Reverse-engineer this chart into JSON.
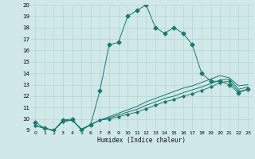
{
  "xlabel": "Humidex (Indice chaleur)",
  "xlim": [
    -0.5,
    23.5
  ],
  "ylim": [
    9,
    20
  ],
  "yticks": [
    9,
    10,
    11,
    12,
    13,
    14,
    15,
    16,
    17,
    18,
    19,
    20
  ],
  "xticks": [
    0,
    1,
    2,
    3,
    4,
    5,
    6,
    7,
    8,
    9,
    10,
    11,
    12,
    13,
    14,
    15,
    16,
    17,
    18,
    19,
    20,
    21,
    22,
    23
  ],
  "background_color": "#d0e8e8",
  "line_color": "#1a7a6e",
  "grid_color": "#b8d4d4",
  "line1_x": [
    0,
    1,
    2,
    3,
    4,
    5,
    6,
    7,
    8,
    9,
    10,
    11,
    12,
    13,
    14,
    15,
    16,
    17,
    18,
    19,
    20,
    21,
    22,
    23
  ],
  "line1_y": [
    9.7,
    9.2,
    9.0,
    9.9,
    10.0,
    9.0,
    9.5,
    12.5,
    16.5,
    16.7,
    19.0,
    19.5,
    20.0,
    18.0,
    17.5,
    18.0,
    17.5,
    16.5,
    14.0,
    13.3,
    13.3,
    13.0,
    12.3,
    12.6
  ],
  "line2_x": [
    0,
    1,
    2,
    3,
    4,
    5,
    6,
    7,
    8,
    9,
    10,
    11,
    12,
    13,
    14,
    15,
    16,
    17,
    18,
    19,
    20,
    21,
    22,
    23
  ],
  "line2_y": [
    9.4,
    9.2,
    9.0,
    9.8,
    9.9,
    9.1,
    9.5,
    9.9,
    10.0,
    10.2,
    10.4,
    10.6,
    10.9,
    11.2,
    11.5,
    11.7,
    12.0,
    12.2,
    12.5,
    12.8,
    13.2,
    13.3,
    12.4,
    12.6
  ],
  "line3_x": [
    0,
    1,
    2,
    3,
    4,
    5,
    6,
    7,
    8,
    9,
    10,
    11,
    12,
    13,
    14,
    15,
    16,
    17,
    18,
    19,
    20,
    21,
    22,
    23
  ],
  "line3_y": [
    9.4,
    9.2,
    9.0,
    9.8,
    9.9,
    9.1,
    9.5,
    9.9,
    10.1,
    10.35,
    10.6,
    10.85,
    11.2,
    11.5,
    11.8,
    12.0,
    12.3,
    12.55,
    12.8,
    13.1,
    13.4,
    13.5,
    12.6,
    12.8
  ],
  "line4_x": [
    0,
    1,
    2,
    3,
    4,
    5,
    6,
    7,
    8,
    9,
    10,
    11,
    12,
    13,
    14,
    15,
    16,
    17,
    18,
    19,
    20,
    21,
    22,
    23
  ],
  "line4_y": [
    9.4,
    9.2,
    9.0,
    9.8,
    9.9,
    9.1,
    9.5,
    9.9,
    10.2,
    10.5,
    10.8,
    11.1,
    11.5,
    11.8,
    12.1,
    12.4,
    12.7,
    12.9,
    13.2,
    13.5,
    13.8,
    13.6,
    12.9,
    13.0
  ]
}
